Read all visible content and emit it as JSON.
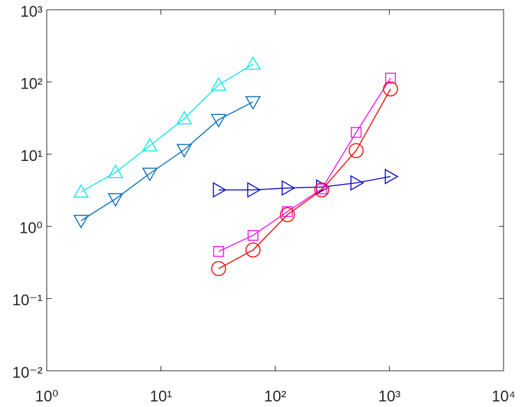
{
  "chart_data": {
    "type": "line",
    "xscale": "log",
    "yscale": "log",
    "xlim": [
      1,
      10000
    ],
    "ylim": [
      0.01,
      1000
    ],
    "xticks": [
      {
        "value": 1,
        "label": "10⁰"
      },
      {
        "value": 10,
        "label": "10¹"
      },
      {
        "value": 100,
        "label": "10²"
      },
      {
        "value": 1000,
        "label": "10³"
      },
      {
        "value": 10000,
        "label": "10⁴"
      }
    ],
    "yticks": [
      {
        "value": 0.01,
        "label": "10⁻²"
      },
      {
        "value": 0.1,
        "label": "10⁻¹"
      },
      {
        "value": 1,
        "label": "10⁰"
      },
      {
        "value": 10,
        "label": "10¹"
      },
      {
        "value": 100,
        "label": "10²"
      },
      {
        "value": 1000,
        "label": "10³"
      }
    ],
    "grid": false,
    "series": [
      {
        "color": "#1be6ec",
        "marker": "triangle-up",
        "x": [
          2,
          4,
          8,
          16,
          32,
          64
        ],
        "values": [
          3.0,
          5.6,
          13.1,
          31,
          91,
          177
        ]
      },
      {
        "color": "#0f72ba",
        "marker": "triangle-down",
        "x": [
          2,
          4,
          8,
          16,
          32,
          64
        ],
        "values": [
          1.2,
          2.4,
          5.4,
          11.5,
          30,
          53
        ]
      },
      {
        "color": "#1111cc",
        "marker": "triangle-right",
        "x": [
          32,
          64,
          128,
          256,
          512,
          1024
        ],
        "values": [
          3.2,
          3.2,
          3.4,
          3.5,
          4.0,
          4.9
        ]
      },
      {
        "color": "#ee1cee",
        "marker": "square",
        "x": [
          32,
          64,
          128,
          256,
          512,
          1024
        ],
        "values": [
          0.45,
          0.75,
          1.6,
          3.3,
          20,
          113
        ]
      },
      {
        "color": "#ee1111",
        "marker": "circle",
        "x": [
          32,
          64,
          128,
          256,
          512,
          1024
        ],
        "values": [
          0.26,
          0.47,
          1.45,
          3.2,
          11.2,
          80
        ]
      }
    ]
  }
}
